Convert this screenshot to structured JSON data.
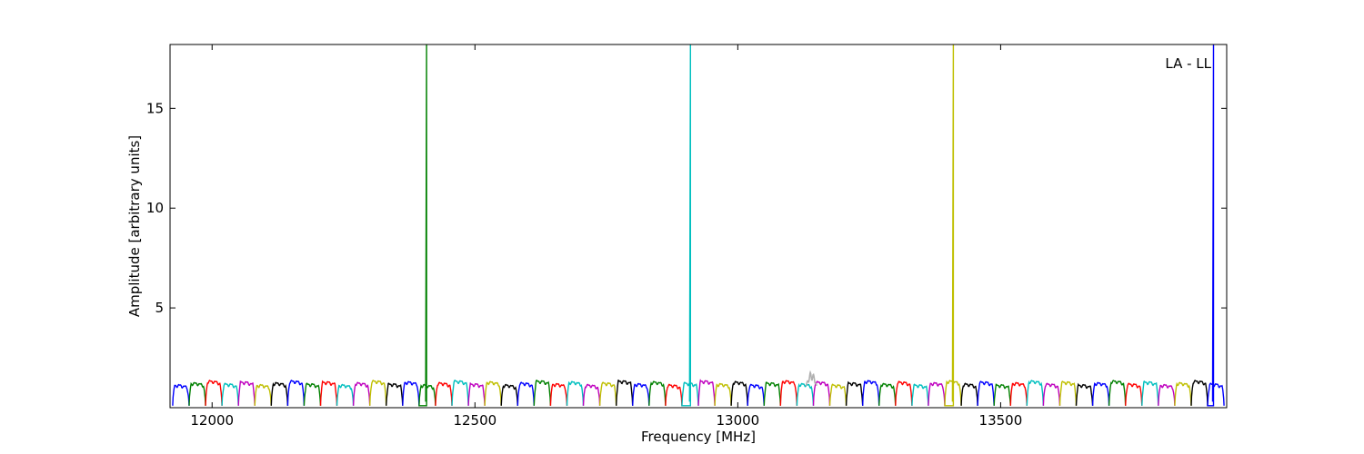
{
  "chart_data": {
    "type": "line",
    "xlabel": "Frequency [MHz]",
    "ylabel": "Amplitude [arbitrary units]",
    "annotation": "LA - LL",
    "annotation_position": "top-right",
    "xlim": [
      11920,
      13930
    ],
    "ylim": [
      0,
      18.2
    ],
    "xticks": [
      12000,
      12500,
      13000,
      13500
    ],
    "yticks": [
      5,
      10,
      15
    ],
    "grid": false,
    "legend": "none",
    "channel_width_mhz": 31.25,
    "channel_start_mhz": 11925,
    "channel_count": 64,
    "color_cycle": [
      "#0000ff",
      "#008000",
      "#ff0000",
      "#00bfbf",
      "#bf00bf",
      "#bfbf00",
      "#000000"
    ],
    "series": [
      {
        "values_note": "per-channel bandpass ripple, peak amplitude",
        "typical_peak": 1.2,
        "dip_min": 0.1,
        "spikes": [
          {
            "x": 12408,
            "y": 18.2,
            "color": "#008000"
          },
          {
            "x": 12910,
            "y": 18.2,
            "color": "#00bfbf"
          },
          {
            "x": 13410,
            "y": 18.2,
            "color": "#bfbf00"
          },
          {
            "x": 13905,
            "y": 18.2,
            "color": "#0000ff"
          }
        ],
        "gray_bumps": [
          {
            "x": 13140,
            "y": 1.8
          }
        ]
      }
    ]
  }
}
